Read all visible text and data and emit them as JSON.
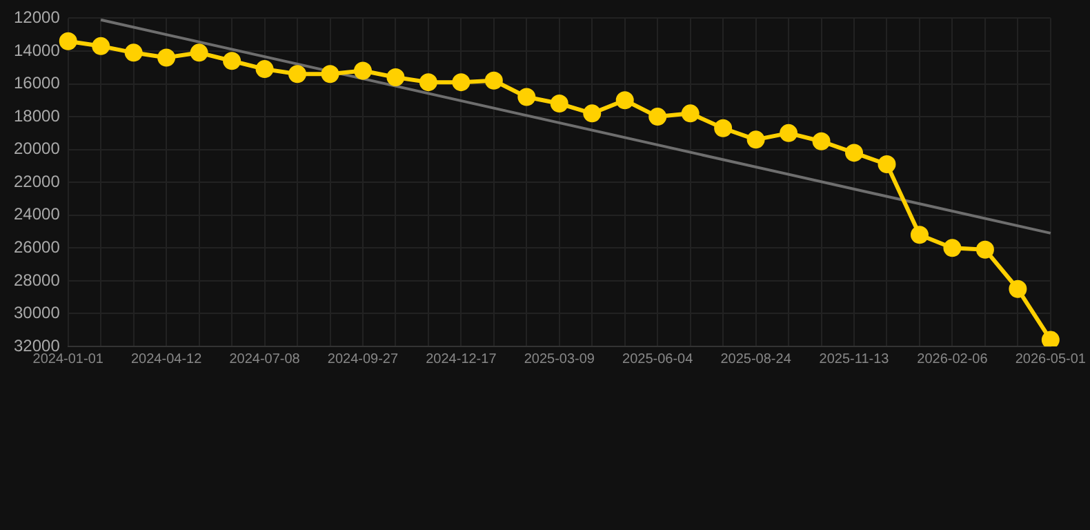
{
  "chart_data": {
    "type": "line",
    "categories": [
      "2024-01-01",
      null,
      null,
      "2024-04-12",
      null,
      null,
      "2024-07-08",
      null,
      null,
      "2024-09-27",
      null,
      null,
      "2024-12-17",
      null,
      null,
      "2025-03-09",
      null,
      null,
      "2025-06-04",
      null,
      null,
      "2025-08-24",
      null,
      null,
      "2025-11-13",
      null,
      null,
      "2026-02-06",
      null,
      null,
      "2026-05-01"
    ],
    "series": [
      {
        "color": "#ffd000",
        "marker": "circle",
        "values": [
          13400,
          13700,
          14100,
          14400,
          14100,
          14600,
          15100,
          15400,
          15400,
          15200,
          15600,
          15900,
          15900,
          15800,
          16800,
          17200,
          17800,
          17000,
          18000,
          17800,
          18700,
          19400,
          19000,
          19500,
          20200,
          20900,
          25200,
          26000,
          26100,
          28500,
          31600
        ]
      },
      {
        "color": "#6e6e6e",
        "marker": "none",
        "values": [
          null,
          12100,
          null,
          null,
          null,
          null,
          null,
          null,
          null,
          null,
          null,
          null,
          null,
          null,
          null,
          null,
          null,
          null,
          null,
          null,
          null,
          null,
          null,
          null,
          null,
          null,
          null,
          null,
          null,
          null,
          25100
        ]
      }
    ],
    "ylim": [
      32000,
      12000
    ],
    "yticks": [
      12000,
      14000,
      16000,
      18000,
      20000,
      22000,
      24000,
      26000,
      28000,
      30000,
      32000
    ],
    "grid": true,
    "legend": false
  }
}
